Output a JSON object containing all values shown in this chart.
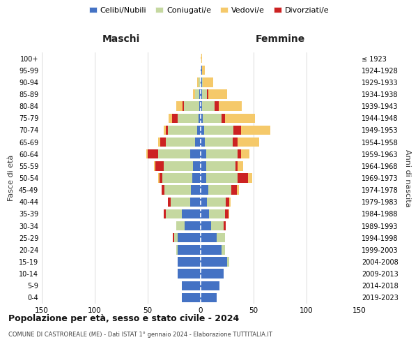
{
  "age_groups": [
    "0-4",
    "5-9",
    "10-14",
    "15-19",
    "20-24",
    "25-29",
    "30-34",
    "35-39",
    "40-44",
    "45-49",
    "50-54",
    "55-59",
    "60-64",
    "65-69",
    "70-74",
    "75-79",
    "80-84",
    "85-89",
    "90-94",
    "95-99",
    "100+"
  ],
  "birth_years": [
    "2019-2023",
    "2014-2018",
    "2009-2013",
    "2004-2008",
    "1999-2003",
    "1994-1998",
    "1989-1993",
    "1984-1988",
    "1979-1983",
    "1974-1978",
    "1969-1973",
    "1964-1968",
    "1959-1963",
    "1954-1958",
    "1949-1953",
    "1944-1948",
    "1939-1943",
    "1934-1938",
    "1929-1933",
    "1924-1928",
    "≤ 1923"
  ],
  "maschi": {
    "celibi": [
      18,
      18,
      22,
      22,
      22,
      22,
      15,
      18,
      10,
      9,
      8,
      7,
      10,
      5,
      3,
      2,
      1,
      1,
      0,
      0,
      0
    ],
    "coniugati": [
      0,
      0,
      0,
      0,
      1,
      3,
      8,
      15,
      18,
      25,
      28,
      28,
      30,
      28,
      28,
      20,
      15,
      4,
      2,
      0,
      0
    ],
    "vedovi": [
      0,
      0,
      0,
      0,
      0,
      0,
      0,
      0,
      0,
      0,
      1,
      1,
      1,
      2,
      2,
      3,
      6,
      2,
      1,
      0,
      0
    ],
    "divorziati": [
      0,
      0,
      0,
      0,
      0,
      1,
      0,
      2,
      3,
      3,
      3,
      8,
      10,
      5,
      2,
      5,
      1,
      0,
      0,
      0,
      0
    ]
  },
  "femmine": {
    "nubili": [
      15,
      18,
      22,
      25,
      20,
      15,
      10,
      8,
      6,
      7,
      5,
      5,
      5,
      4,
      3,
      2,
      1,
      1,
      1,
      1,
      0
    ],
    "coniugate": [
      0,
      0,
      0,
      2,
      3,
      8,
      12,
      15,
      18,
      22,
      30,
      28,
      30,
      26,
      28,
      18,
      12,
      5,
      1,
      0,
      0
    ],
    "vedove": [
      0,
      0,
      0,
      0,
      0,
      0,
      0,
      1,
      1,
      2,
      4,
      5,
      8,
      20,
      28,
      28,
      22,
      18,
      10,
      3,
      1
    ],
    "divorziate": [
      0,
      0,
      0,
      0,
      0,
      0,
      2,
      3,
      3,
      5,
      10,
      2,
      3,
      5,
      7,
      3,
      4,
      1,
      0,
      0,
      0
    ]
  },
  "colors": {
    "celibi_nubili": "#4472C4",
    "coniugati_e": "#C5D8A0",
    "vedovi_e": "#F5C96A",
    "divorziati_e": "#CC2222"
  },
  "xlim": 150,
  "title": "Popolazione per età, sesso e stato civile - 2024",
  "subtitle": "COMUNE DI CASTROREALE (ME) - Dati ISTAT 1° gennaio 2024 - Elaborazione TUTTITALIA.IT",
  "xlabel_left": "Maschi",
  "xlabel_right": "Femmine",
  "ylabel_left": "Fasce di età",
  "ylabel_right": "Anni di nascita",
  "legend_labels": [
    "Celibi/Nubili",
    "Coniugati/e",
    "Vedovi/e",
    "Divorziati/e"
  ],
  "bg_color": "#ffffff",
  "grid_color": "#cccccc"
}
